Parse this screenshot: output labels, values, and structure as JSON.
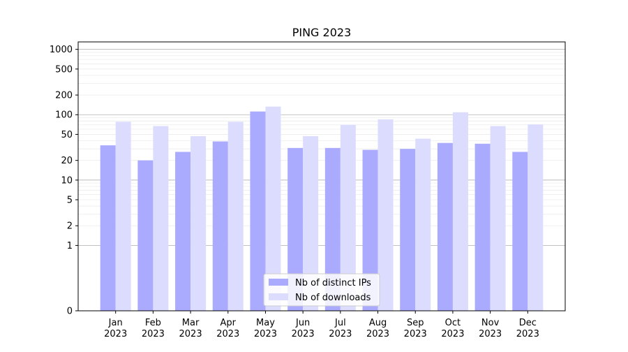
{
  "chart_data": {
    "type": "bar",
    "title": "PING 2023",
    "xlabel": "",
    "ylabel": "",
    "scale": "symlog",
    "ylim": [
      0,
      1300
    ],
    "categories": [
      [
        "Jan",
        "2023"
      ],
      [
        "Feb",
        "2023"
      ],
      [
        "Mar",
        "2023"
      ],
      [
        "Apr",
        "2023"
      ],
      [
        "May",
        "2023"
      ],
      [
        "Jun",
        "2023"
      ],
      [
        "Jul",
        "2023"
      ],
      [
        "Aug",
        "2023"
      ],
      [
        "Sep",
        "2023"
      ],
      [
        "Oct",
        "2023"
      ],
      [
        "Nov",
        "2023"
      ],
      [
        "Dec",
        "2023"
      ]
    ],
    "y_ticks": [
      0,
      1,
      2,
      5,
      10,
      20,
      50,
      100,
      200,
      500,
      1000
    ],
    "y_tick_labels": [
      "0",
      "1",
      "2",
      "5",
      "10",
      "20",
      "50",
      "100",
      "200",
      "500",
      "1000"
    ],
    "series": [
      {
        "name": "Nb of distinct IPs",
        "color": "#aaaaff",
        "values": [
          34,
          20,
          27,
          39,
          112,
          31,
          31,
          29,
          30,
          37,
          36,
          27
        ]
      },
      {
        "name": "Nb of downloads",
        "color": "#dcdcff",
        "values": [
          78,
          67,
          47,
          78,
          133,
          47,
          70,
          85,
          43,
          109,
          67,
          71
        ]
      }
    ],
    "grid": true,
    "legend_position": "bottom-center"
  }
}
